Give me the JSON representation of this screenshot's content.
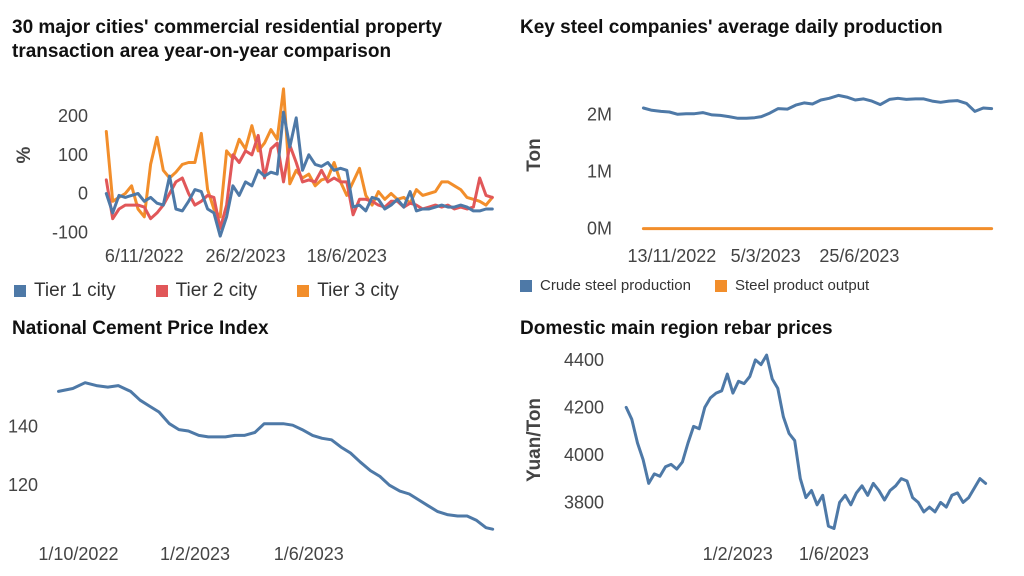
{
  "colors": {
    "tier1": "#4e79a7",
    "tier2": "#e15759",
    "tier3": "#f28e2b",
    "blue": "#4e79a7",
    "orange": "#f28e2b"
  },
  "chart_data": [
    {
      "type": "line",
      "title": "30 major cities' commercial residential property transaction area year-on-year comparison",
      "ylabel": "%",
      "ylim": [
        -120,
        280
      ],
      "yticks": [
        -100,
        0,
        100,
        200
      ],
      "xticks": [
        "6/11/2022",
        "26/2/2023",
        "18/6/2023"
      ],
      "x_range": [
        "2022-09-18",
        "2023-12-10"
      ],
      "legend": "bottom",
      "series": [
        {
          "name": "Tier 1 city",
          "color": "#4e79a7",
          "x": [
            "2022-09-25",
            "2022-10-02",
            "2022-10-09",
            "2022-10-16",
            "2022-10-23",
            "2022-10-30",
            "2022-11-06",
            "2022-11-13",
            "2022-11-20",
            "2022-11-27",
            "2022-12-04",
            "2022-12-11",
            "2022-12-18",
            "2022-12-25",
            "2023-01-01",
            "2023-01-08",
            "2023-01-15",
            "2023-01-22",
            "2023-01-29",
            "2023-02-05",
            "2023-02-12",
            "2023-02-19",
            "2023-02-26",
            "2023-03-05",
            "2023-03-12",
            "2023-03-19",
            "2023-03-26",
            "2023-04-02",
            "2023-04-09",
            "2023-04-16",
            "2023-04-23",
            "2023-04-30",
            "2023-05-07",
            "2023-05-14",
            "2023-05-21",
            "2023-05-28",
            "2023-06-04",
            "2023-06-11",
            "2023-06-18",
            "2023-06-25",
            "2023-07-02",
            "2023-07-09",
            "2023-07-16",
            "2023-07-23",
            "2023-07-30",
            "2023-08-06",
            "2023-08-13",
            "2023-08-20",
            "2023-08-27",
            "2023-09-03",
            "2023-09-10",
            "2023-09-17",
            "2023-09-24",
            "2023-10-01",
            "2023-10-08",
            "2023-10-15",
            "2023-10-22",
            "2023-10-29",
            "2023-11-05",
            "2023-11-12",
            "2023-11-19",
            "2023-11-26"
          ],
          "y": [
            0,
            -50,
            -5,
            -10,
            -5,
            0,
            -20,
            -10,
            -25,
            -30,
            45,
            -40,
            -45,
            -20,
            10,
            5,
            -40,
            -50,
            -110,
            -60,
            20,
            -5,
            30,
            20,
            60,
            45,
            55,
            50,
            210,
            120,
            195,
            60,
            100,
            75,
            70,
            80,
            60,
            65,
            60,
            -35,
            -30,
            -45,
            -10,
            -15,
            -40,
            -30,
            -15,
            -35,
            5,
            -45,
            -40,
            -40,
            -35,
            -30,
            -35,
            -35,
            -30,
            -35,
            -45,
            -45,
            -40,
            -40
          ]
        },
        {
          "name": "Tier 2 city",
          "color": "#e15759",
          "x": [
            "2022-09-25",
            "2022-10-02",
            "2022-10-09",
            "2022-10-16",
            "2022-10-23",
            "2022-10-30",
            "2022-11-06",
            "2022-11-13",
            "2022-11-20",
            "2022-11-27",
            "2022-12-04",
            "2022-12-11",
            "2022-12-18",
            "2022-12-25",
            "2023-01-01",
            "2023-01-08",
            "2023-01-15",
            "2023-01-22",
            "2023-01-29",
            "2023-02-05",
            "2023-02-12",
            "2023-02-19",
            "2023-02-26",
            "2023-03-05",
            "2023-03-12",
            "2023-03-19",
            "2023-03-26",
            "2023-04-02",
            "2023-04-09",
            "2023-04-16",
            "2023-04-23",
            "2023-04-30",
            "2023-05-07",
            "2023-05-14",
            "2023-05-21",
            "2023-05-28",
            "2023-06-04",
            "2023-06-11",
            "2023-06-18",
            "2023-06-25",
            "2023-07-02",
            "2023-07-09",
            "2023-07-16",
            "2023-07-23",
            "2023-07-30",
            "2023-08-06",
            "2023-08-13",
            "2023-08-20",
            "2023-08-27",
            "2023-09-03",
            "2023-09-10",
            "2023-09-17",
            "2023-09-24",
            "2023-10-01",
            "2023-10-08",
            "2023-10-15",
            "2023-10-22",
            "2023-10-29",
            "2023-11-05",
            "2023-11-12",
            "2023-11-19",
            "2023-11-26"
          ],
          "y": [
            35,
            -65,
            -40,
            -30,
            -30,
            -30,
            -35,
            -65,
            -50,
            -30,
            0,
            30,
            40,
            0,
            -30,
            -20,
            -5,
            -10,
            -90,
            -30,
            100,
            80,
            110,
            100,
            150,
            40,
            115,
            130,
            30,
            125,
            80,
            30,
            35,
            30,
            60,
            30,
            40,
            30,
            30,
            -55,
            -15,
            -15,
            -20,
            -30,
            -35,
            -20,
            -20,
            -35,
            -25,
            -30,
            -40,
            -35,
            -30,
            -35,
            -30,
            -40,
            -35,
            -40,
            -35,
            40,
            -5,
            -10
          ]
        },
        {
          "name": "Tier 3 city",
          "color": "#f28e2b",
          "x": [
            "2022-09-25",
            "2022-10-02",
            "2022-10-09",
            "2022-10-16",
            "2022-10-23",
            "2022-10-30",
            "2022-11-06",
            "2022-11-13",
            "2022-11-20",
            "2022-11-27",
            "2022-12-04",
            "2022-12-11",
            "2022-12-18",
            "2022-12-25",
            "2023-01-01",
            "2023-01-08",
            "2023-01-15",
            "2023-01-22",
            "2023-01-29",
            "2023-02-05",
            "2023-02-12",
            "2023-02-19",
            "2023-02-26",
            "2023-03-05",
            "2023-03-12",
            "2023-03-19",
            "2023-03-26",
            "2023-04-02",
            "2023-04-09",
            "2023-04-16",
            "2023-04-23",
            "2023-04-30",
            "2023-05-07",
            "2023-05-14",
            "2023-05-21",
            "2023-05-28",
            "2023-06-04",
            "2023-06-11",
            "2023-06-18",
            "2023-06-25",
            "2023-07-02",
            "2023-07-09",
            "2023-07-16",
            "2023-07-23",
            "2023-07-30",
            "2023-08-06",
            "2023-08-13",
            "2023-08-20",
            "2023-08-27",
            "2023-09-03",
            "2023-09-10",
            "2023-09-17",
            "2023-09-24",
            "2023-10-01",
            "2023-10-08",
            "2023-10-15",
            "2023-10-22",
            "2023-10-29",
            "2023-11-05",
            "2023-11-12",
            "2023-11-19",
            "2023-11-26"
          ],
          "y": [
            160,
            -20,
            -10,
            0,
            20,
            -40,
            -60,
            75,
            145,
            60,
            40,
            55,
            75,
            80,
            80,
            155,
            10,
            -40,
            -60,
            110,
            90,
            140,
            115,
            175,
            110,
            130,
            165,
            140,
            270,
            25,
            60,
            40,
            50,
            20,
            35,
            40,
            80,
            30,
            -5,
            30,
            65,
            -5,
            -30,
            5,
            -15,
            0,
            -15,
            -10,
            -25,
            10,
            -5,
            0,
            5,
            30,
            30,
            20,
            10,
            -10,
            -15,
            -20,
            -30,
            -10
          ]
        }
      ]
    },
    {
      "type": "line",
      "title": "Key steel companies' average daily production",
      "ylabel": "Ton",
      "ylim": [
        -200000,
        2600000
      ],
      "yticks": [
        0,
        1000000,
        2000000
      ],
      "ytick_labels": [
        "0M",
        "1M",
        "2M"
      ],
      "xticks": [
        "13/11/2022",
        "5/3/2023",
        "25/6/2023"
      ],
      "x_range": [
        "2022-09-18",
        "2023-12-10"
      ],
      "legend": "bottom",
      "series": [
        {
          "name": "Crude steel production",
          "color": "#4e79a7",
          "x": [
            "2022-10-10",
            "2022-10-20",
            "2022-10-31",
            "2022-11-10",
            "2022-11-20",
            "2022-11-30",
            "2022-12-10",
            "2022-12-20",
            "2022-12-31",
            "2023-01-10",
            "2023-01-20",
            "2023-01-31",
            "2023-02-10",
            "2023-02-20",
            "2023-02-28",
            "2023-03-10",
            "2023-03-20",
            "2023-03-31",
            "2023-04-10",
            "2023-04-20",
            "2023-04-30",
            "2023-05-10",
            "2023-05-20",
            "2023-05-31",
            "2023-06-10",
            "2023-06-20",
            "2023-06-30",
            "2023-07-10",
            "2023-07-20",
            "2023-07-31",
            "2023-08-10",
            "2023-08-20",
            "2023-08-31",
            "2023-09-10",
            "2023-09-20",
            "2023-09-30",
            "2023-10-10",
            "2023-10-20",
            "2023-10-31",
            "2023-11-10",
            "2023-11-20",
            "2023-11-30"
          ],
          "y": [
            2110000,
            2070000,
            2050000,
            2040000,
            2000000,
            2010000,
            2010000,
            2030000,
            1990000,
            1980000,
            1960000,
            1930000,
            1930000,
            1940000,
            1960000,
            2020000,
            2100000,
            2090000,
            2160000,
            2200000,
            2180000,
            2250000,
            2280000,
            2330000,
            2300000,
            2250000,
            2270000,
            2230000,
            2170000,
            2260000,
            2280000,
            2260000,
            2270000,
            2270000,
            2230000,
            2210000,
            2230000,
            2240000,
            2190000,
            2050000,
            2110000,
            2100000
          ]
        },
        {
          "name": "Steel product output",
          "color": "#f28e2b",
          "x": [
            "2022-10-10",
            "2023-11-30"
          ],
          "y": [
            0,
            0
          ]
        }
      ]
    },
    {
      "type": "line",
      "title": "National Cement Price Index",
      "ylim": [
        102,
        160
      ],
      "yticks": [
        120,
        140
      ],
      "xticks": [
        "1/10/2022",
        "1/2/2023",
        "1/6/2023"
      ],
      "x_range": [
        "2022-09-01",
        "2023-12-25"
      ],
      "series": [
        {
          "name": "",
          "color": "#4e79a7",
          "x": [
            "2022-09-10",
            "2022-09-25",
            "2022-10-08",
            "2022-10-20",
            "2022-11-01",
            "2022-11-12",
            "2022-11-25",
            "2022-12-05",
            "2022-12-15",
            "2022-12-25",
            "2023-01-05",
            "2023-01-15",
            "2023-01-25",
            "2023-02-05",
            "2023-02-15",
            "2023-02-25",
            "2023-03-05",
            "2023-03-15",
            "2023-03-25",
            "2023-04-05",
            "2023-04-15",
            "2023-04-25",
            "2023-05-05",
            "2023-05-15",
            "2023-05-25",
            "2023-06-05",
            "2023-06-15",
            "2023-06-25",
            "2023-07-05",
            "2023-07-15",
            "2023-07-25",
            "2023-08-05",
            "2023-08-15",
            "2023-08-25",
            "2023-09-05",
            "2023-09-15",
            "2023-09-25",
            "2023-10-05",
            "2023-10-15",
            "2023-10-25",
            "2023-11-05",
            "2023-11-15",
            "2023-11-25",
            "2023-12-05",
            "2023-12-12"
          ],
          "y": [
            152,
            153,
            155,
            154,
            153.5,
            154,
            152,
            149,
            147,
            145,
            141,
            139,
            138.5,
            137,
            136.5,
            136.5,
            136.5,
            137,
            137,
            138,
            141,
            141,
            141,
            140.5,
            139,
            137,
            136,
            135.5,
            133,
            131,
            128,
            125,
            123,
            120,
            118,
            117,
            115,
            113,
            111,
            110,
            109.5,
            109.5,
            108,
            105.5,
            105
          ]
        }
      ]
    },
    {
      "type": "line",
      "title": "Domestic main region rebar prices",
      "ylabel": "Yuan/Ton",
      "ylim": [
        3650,
        4450
      ],
      "yticks": [
        3800,
        4000,
        4200,
        4400
      ],
      "xticks": [
        "1/2/2023",
        "1/6/2023"
      ],
      "x_range": [
        "2022-09-01",
        "2023-12-25"
      ],
      "series": [
        {
          "name": "",
          "color": "#4e79a7",
          "x": [
            "2022-09-15",
            "2022-09-22",
            "2022-09-29",
            "2022-10-06",
            "2022-10-13",
            "2022-10-20",
            "2022-10-27",
            "2022-11-03",
            "2022-11-10",
            "2022-11-17",
            "2022-11-24",
            "2022-12-01",
            "2022-12-08",
            "2022-12-15",
            "2022-12-22",
            "2022-12-29",
            "2023-01-05",
            "2023-01-12",
            "2023-01-19",
            "2023-01-26",
            "2023-02-02",
            "2023-02-09",
            "2023-02-16",
            "2023-02-23",
            "2023-03-02",
            "2023-03-09",
            "2023-03-16",
            "2023-03-23",
            "2023-03-30",
            "2023-04-06",
            "2023-04-13",
            "2023-04-20",
            "2023-04-27",
            "2023-05-04",
            "2023-05-11",
            "2023-05-18",
            "2023-05-25",
            "2023-06-01",
            "2023-06-08",
            "2023-06-15",
            "2023-06-22",
            "2023-06-29",
            "2023-07-06",
            "2023-07-13",
            "2023-07-20",
            "2023-07-27",
            "2023-08-03",
            "2023-08-10",
            "2023-08-17",
            "2023-08-24",
            "2023-08-31",
            "2023-09-07",
            "2023-09-14",
            "2023-09-21",
            "2023-09-28",
            "2023-10-05",
            "2023-10-12",
            "2023-10-19",
            "2023-10-26",
            "2023-11-02",
            "2023-11-09",
            "2023-11-16",
            "2023-11-23",
            "2023-11-30",
            "2023-12-07"
          ],
          "y": [
            4200,
            4150,
            4050,
            3980,
            3880,
            3920,
            3910,
            3950,
            3960,
            3940,
            3970,
            4050,
            4120,
            4110,
            4200,
            4240,
            4260,
            4270,
            4340,
            4260,
            4310,
            4300,
            4330,
            4400,
            4380,
            4420,
            4320,
            4280,
            4160,
            4090,
            4060,
            3900,
            3820,
            3850,
            3790,
            3830,
            3700,
            3690,
            3800,
            3830,
            3790,
            3840,
            3870,
            3830,
            3880,
            3850,
            3810,
            3850,
            3870,
            3900,
            3890,
            3820,
            3800,
            3760,
            3780,
            3760,
            3800,
            3780,
            3830,
            3840,
            3800,
            3820,
            3860,
            3900,
            3880
          ]
        }
      ]
    }
  ]
}
